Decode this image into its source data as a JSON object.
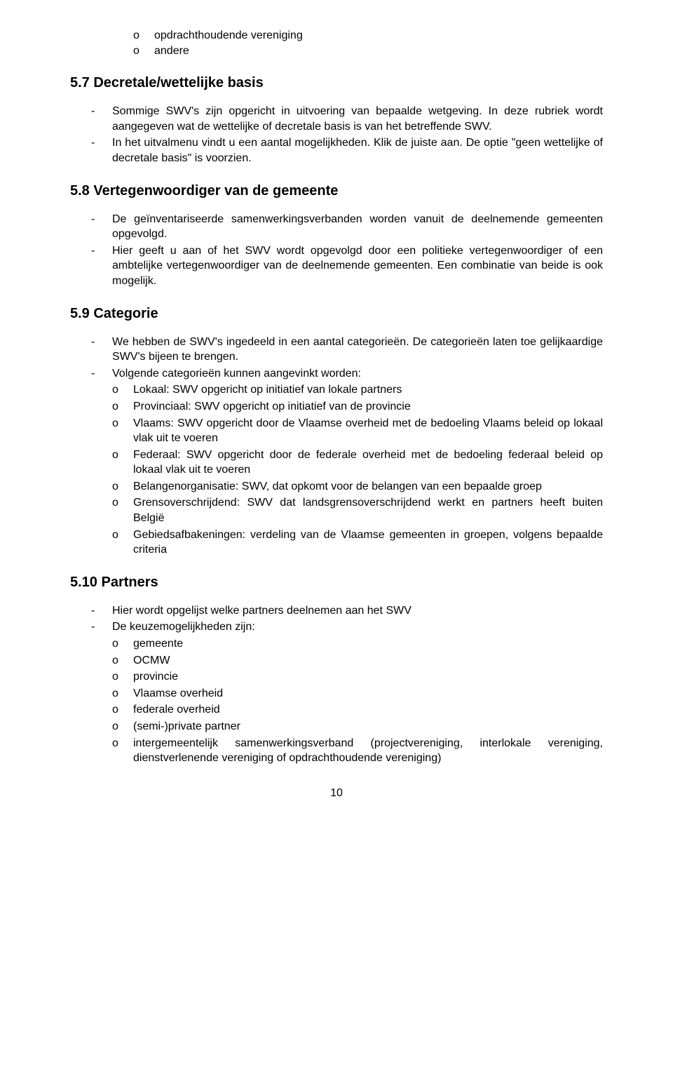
{
  "top_o_items": [
    "opdrachthoudende vereniging",
    "andere"
  ],
  "sections": {
    "s57": {
      "heading": "5.7 Decretale/wettelijke basis",
      "items": [
        "Sommige SWV's zijn opgericht in uitvoering van bepaalde wetgeving. In deze rubriek wordt aangegeven wat de wettelijke of decretale basis is van het betreffende SWV.",
        "In het uitvalmenu vindt u een aantal mogelijkheden. Klik de juiste aan. De optie \"geen wettelijke of decretale basis\" is voorzien."
      ]
    },
    "s58": {
      "heading": "5.8 Vertegenwoordiger van de gemeente",
      "items": [
        "De geïnventariseerde samenwerkingsverbanden worden vanuit de deelnemende gemeenten opgevolgd.",
        "Hier geeft u aan of het SWV wordt opgevolgd door een politieke vertegenwoordiger of een ambtelijke vertegenwoordiger van de deelnemende gemeenten. Een combinatie van beide is ook mogelijk."
      ]
    },
    "s59": {
      "heading": "5.9 Categorie",
      "items": [
        "We hebben de SWV's ingedeeld in een aantal categorieën. De categorieën laten toe gelijkaardige SWV's bijeen te brengen.",
        "Volgende categorieën kunnen aangevinkt worden:"
      ],
      "sub_o": [
        "Lokaal: SWV opgericht op initiatief van lokale partners",
        "Provinciaal: SWV opgericht op initiatief van de provincie",
        "Vlaams: SWV opgericht door de Vlaamse overheid met de bedoeling Vlaams beleid op lokaal vlak uit te voeren",
        "Federaal: SWV opgericht door de federale overheid met de bedoeling federaal beleid op lokaal vlak uit te voeren",
        "Belangenorganisatie: SWV, dat opkomt voor de belangen van een bepaalde groep",
        "Grensoverschrijdend: SWV dat landsgrensoverschrijdend werkt en partners heeft buiten België",
        "Gebiedsafbakeningen: verdeling van de Vlaamse gemeenten in groepen, volgens bepaalde criteria"
      ]
    },
    "s510": {
      "heading": "5.10 Partners",
      "items": [
        "Hier wordt opgelijst welke partners deelnemen aan het SWV",
        "De keuzemogelijkheden zijn:"
      ],
      "sub_o": [
        "gemeente",
        "OCMW",
        "provincie",
        "Vlaamse overheid",
        "federale overheid",
        "(semi-)private partner",
        "intergemeentelijk samenwerkingsverband (projectvereniging, interlokale vereniging, dienstverlenende vereniging of opdrachthoudende vereniging)"
      ]
    }
  },
  "page_number": "10",
  "markers": {
    "o": "o",
    "dash": "-"
  }
}
